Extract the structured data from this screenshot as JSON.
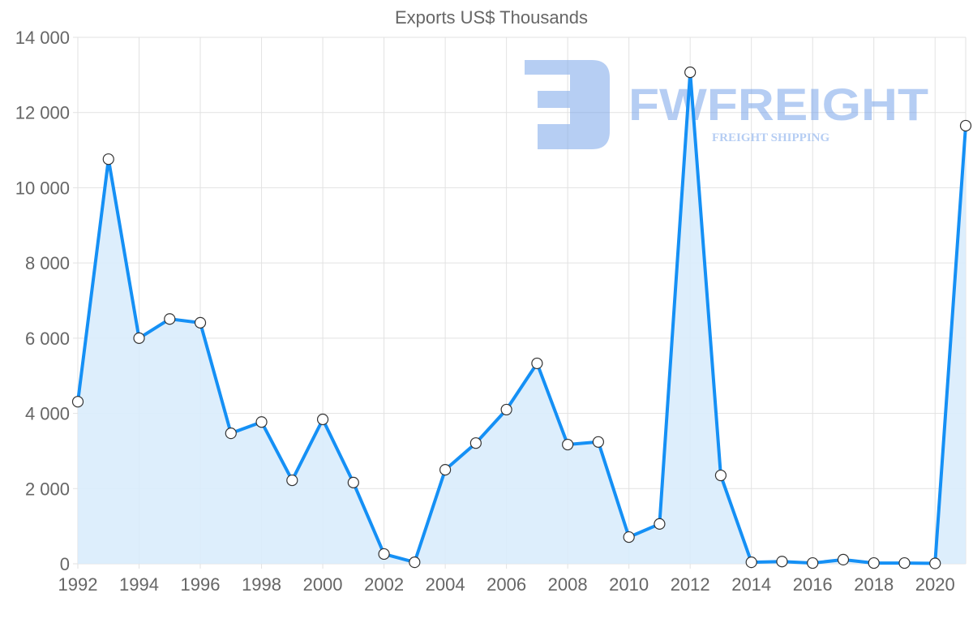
{
  "chart_data": {
    "type": "area",
    "title": "Exports US$ Thousands",
    "xlabel": "",
    "ylabel": "",
    "x": [
      1992,
      1993,
      1994,
      1995,
      1996,
      1997,
      1998,
      1999,
      2000,
      2001,
      2002,
      2003,
      2004,
      2005,
      2006,
      2007,
      2008,
      2009,
      2010,
      2011,
      2012,
      2013,
      2014,
      2015,
      2016,
      2017,
      2018,
      2019,
      2020,
      2021
    ],
    "series": [
      {
        "name": "Exports US$ Thousands",
        "values": [
          4310,
          10760,
          6000,
          6510,
          6410,
          3470,
          3770,
          2220,
          3840,
          2160,
          260,
          40,
          2500,
          3210,
          4100,
          5330,
          3170,
          3240,
          710,
          1060,
          13070,
          2350,
          40,
          60,
          20,
          110,
          20,
          20,
          10,
          11650
        ]
      }
    ],
    "xlim": [
      1992,
      2021
    ],
    "ylim": [
      0,
      14000
    ],
    "x_ticks": [
      "1992",
      "1994",
      "1996",
      "1998",
      "2000",
      "2002",
      "2004",
      "2006",
      "2008",
      "2010",
      "2012",
      "2014",
      "2016",
      "2018",
      "2020"
    ],
    "y_ticks": [
      "0",
      "2 000",
      "4 000",
      "6 000",
      "8 000",
      "10 000",
      "12 000",
      "14 000"
    ],
    "grid": true,
    "colors": {
      "line": "#1590f5",
      "fill": "#d9ecfc",
      "grid": "#e2e2e2",
      "text": "#666666"
    }
  },
  "watermark": {
    "brand": "FWFREIGHT",
    "tagline": "FREIGHT SHIPPING"
  }
}
